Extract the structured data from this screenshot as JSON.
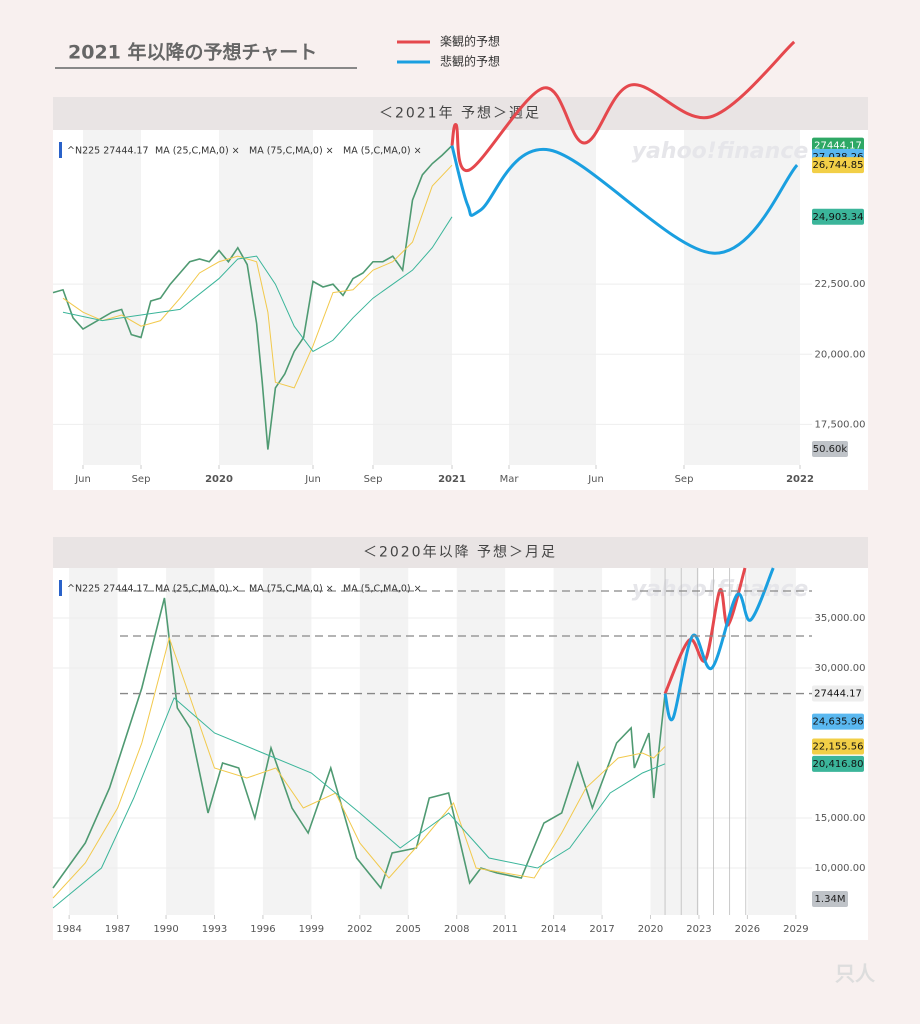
{
  "title": "2021 年以降の予想チャート",
  "watermark": "yahoo!finance",
  "logo": "只人",
  "chart_data": [
    {
      "type": "line",
      "header": "＜2021年 予想＞週足",
      "ticker_items": [
        "^N225 27444.17",
        "MA (25,C,MA,0) ×",
        "MA (75,C,MA,0) ×",
        "MA (5,C,MA,0) ×"
      ],
      "xlim": [
        3.5,
        36.4
      ],
      "xticks": [
        {
          "value": 5,
          "label": "Jun"
        },
        {
          "value": 8,
          "label": "Sep"
        },
        {
          "value": 12,
          "label": "2020"
        },
        {
          "value": 17,
          "label": "Jun"
        },
        {
          "value": 20,
          "label": "Sep"
        },
        {
          "value": 24,
          "label": "2021"
        },
        {
          "value": 26,
          "label": "Mar"
        },
        {
          "value": 29,
          "label": "Jun"
        },
        {
          "value": 32,
          "label": "Sep"
        },
        {
          "value": 36,
          "label": "2022"
        }
      ],
      "ylim": [
        16050,
        28000
      ],
      "yticks": [
        {
          "value": 17500,
          "label": "17,500.00"
        },
        {
          "value": 20000,
          "label": "20,000.00"
        },
        {
          "value": 22500,
          "label": "22,500.00"
        }
      ],
      "series": [
        {
          "color": "#4f9a72",
          "x": [
            3.5,
            4,
            4.5,
            5,
            5.5,
            6,
            6.5,
            7,
            7.5,
            8,
            8.5,
            9,
            9.5,
            10,
            10.5,
            11,
            11.5,
            12,
            12.5,
            13,
            13.5,
            14,
            14.3,
            14.6,
            15,
            15.5,
            16,
            16.5,
            17,
            17.5,
            18,
            18.5,
            19,
            19.5,
            20,
            20.5,
            21,
            21.5,
            22,
            22.5,
            23,
            23.5,
            24
          ],
          "values": [
            22200,
            22300,
            21300,
            20900,
            21100,
            21300,
            21500,
            21600,
            20700,
            20600,
            21900,
            22000,
            22500,
            22900,
            23300,
            23400,
            23300,
            23700,
            23300,
            23800,
            23200,
            21100,
            19000,
            16600,
            18800,
            19300,
            20100,
            20600,
            22600,
            22400,
            22500,
            22100,
            22700,
            22900,
            23300,
            23300,
            23500,
            23000,
            25500,
            26400,
            26800,
            27100,
            27444.17
          ]
        },
        {
          "color": "#f2c94c",
          "x": [
            4,
            5,
            6,
            7,
            8,
            9,
            10,
            11,
            12,
            13,
            14,
            14.6,
            15,
            16,
            17,
            18,
            19,
            20,
            21,
            22,
            23,
            24
          ],
          "values": [
            22000,
            21500,
            21200,
            21400,
            21000,
            21200,
            22000,
            22900,
            23300,
            23500,
            23300,
            21500,
            19000,
            18800,
            20300,
            22200,
            22300,
            23000,
            23300,
            24000,
            26000,
            26744.85
          ]
        },
        {
          "color": "#3bb59a",
          "x": [
            4,
            6,
            8,
            10,
            12,
            13,
            14,
            15,
            16,
            17,
            18,
            19,
            20,
            21,
            22,
            23,
            24
          ],
          "values": [
            21500,
            21200,
            21400,
            21600,
            22700,
            23400,
            23500,
            22500,
            21000,
            20100,
            20500,
            21300,
            22000,
            22500,
            23000,
            23800,
            24903.34
          ]
        },
        {
          "name": "楽観的予想",
          "color": "#e5484d",
          "smooth": true,
          "x": [
            24,
            24.15,
            24.6,
            27.2,
            28.6,
            30.2,
            32.9,
            35.8
          ],
          "values": [
            27444.17,
            28179,
            26571,
            29500,
            27536,
            29607,
            28464,
            31143
          ]
        },
        {
          "name": "悲観的予想",
          "color": "#1a9fe0",
          "smooth": true,
          "x": [
            24,
            24.55,
            25,
            27.4,
            33,
            35.9
          ],
          "values": [
            27444.17,
            25321,
            25143,
            27286,
            23607,
            26750
          ]
        }
      ],
      "badges": [
        {
          "label": "27444.17",
          "value": 27444.17,
          "color": "#2ea865",
          "text_color": "#ffffff"
        },
        {
          "label": "27,038.26",
          "value": 27038.26,
          "color": "#5ab8f0",
          "text_color": "#111111"
        },
        {
          "label": "26,744.85",
          "value": 26744.85,
          "color": "#f2cf47",
          "text_color": "#111111"
        },
        {
          "label": "24,903.34",
          "value": 24903.34,
          "color": "#3bb59a",
          "text_color": "#111111"
        }
      ],
      "volume_label": "50.60k"
    },
    {
      "type": "line",
      "header": "＜2020年以降 予想＞月足",
      "ticker_items": [
        "^N225 27444.17",
        "MA (25,C,MA,0) ×",
        "MA (75,C,MA,0) ×",
        "MA (5,C,MA,0) ×"
      ],
      "xlim": [
        1983,
        2030
      ],
      "xticks": [
        1984,
        1987,
        1990,
        1993,
        1996,
        1999,
        2002,
        2005,
        2008,
        2011,
        2014,
        2017,
        2020,
        2023,
        2026,
        2029
      ],
      "ylim": [
        5300,
        40000
      ],
      "yticks": [
        {
          "value": 35000,
          "label": "35,000.00"
        },
        {
          "value": 30000,
          "label": "30,000.00"
        },
        {
          "value": 15000,
          "label": "15,000.00"
        },
        {
          "value": 10000,
          "label": "10,000.00"
        }
      ],
      "series": [
        {
          "color": "#4f9a72",
          "x": [
            1983,
            1985,
            1986.5,
            1987.8,
            1988.5,
            1989.9,
            1990.7,
            1991.5,
            1992.6,
            1993.5,
            1994.5,
            1995.5,
            1996.5,
            1997.8,
            1998.8,
            2000.2,
            2001.8,
            2003.3,
            2004,
            2005.5,
            2006.3,
            2007.5,
            2008.8,
            2009.5,
            2010.5,
            2012,
            2013.4,
            2014.5,
            2015.5,
            2016.4,
            2017.9,
            2018.8,
            2019,
            2019.9,
            2020.2,
            2020.9
          ],
          "values": [
            8000,
            12500,
            18000,
            24500,
            28000,
            37000,
            26000,
            24000,
            15500,
            20500,
            20000,
            15000,
            22000,
            16000,
            13500,
            20000,
            11000,
            8000,
            11500,
            12000,
            17000,
            17500,
            8500,
            10000,
            9500,
            9000,
            14500,
            15500,
            20500,
            16000,
            22500,
            24000,
            20000,
            23500,
            17000,
            27444.17
          ]
        },
        {
          "color": "#f2c94c",
          "x": [
            1983,
            1985,
            1987,
            1988.5,
            1990.2,
            1991.5,
            1993,
            1995,
            1996.8,
            1998.5,
            2000.5,
            2002,
            2003.8,
            2006,
            2007.8,
            2009.2,
            2011,
            2012.8,
            2014.5,
            2016,
            2018,
            2019.5,
            2020.2,
            2020.9
          ],
          "values": [
            7000,
            10500,
            16000,
            22500,
            33000,
            27000,
            20000,
            19000,
            20000,
            16000,
            17500,
            12500,
            9000,
            13000,
            16500,
            10000,
            9500,
            9000,
            13500,
            18000,
            21000,
            21500,
            21000,
            22155.56
          ]
        },
        {
          "color": "#3bb59a",
          "x": [
            1983,
            1986,
            1988,
            1990.5,
            1993,
            1996,
            1999,
            2002,
            2004.5,
            2007.5,
            2010,
            2013,
            2015,
            2017.5,
            2019.5,
            2020.9
          ],
          "values": [
            6000,
            10000,
            17000,
            27000,
            23500,
            21500,
            19500,
            15500,
            12000,
            15500,
            11000,
            10000,
            12000,
            17500,
            19500,
            20416.8
          ]
        },
        {
          "color": "#e5484d",
          "smooth": true,
          "x": [
            2020.9,
            2022.4,
            2023.4,
            2024.3,
            2024.8,
            2025.85
          ],
          "values": [
            27444.17,
            32800,
            30800,
            37800,
            34300,
            40000
          ]
        },
        {
          "color": "#1a9fe0",
          "smooth": true,
          "x": [
            2020.9,
            2021.4,
            2022.6,
            2023.8,
            2025.35,
            2026.2,
            2027.6
          ],
          "values": [
            27444.17,
            25000,
            33200,
            30000,
            37300,
            34800,
            40000
          ]
        }
      ],
      "reference_lines": [
        37700,
        33200,
        27444.17
      ],
      "vlines": [
        2020.9,
        2021.9,
        2022.9,
        2023.9,
        2024.9,
        2025.9
      ],
      "badges": [
        {
          "label": "27444.17",
          "value": 27444.17,
          "color": "#eeeeee",
          "text_color": "#111111"
        },
        {
          "label": "24,635.96",
          "value": 24635.96,
          "color": "#5ab8f0",
          "text_color": "#111111"
        },
        {
          "label": "22,155.56",
          "value": 22155.56,
          "color": "#f2cf47",
          "text_color": "#111111"
        },
        {
          "label": "20,416.80",
          "value": 20416.8,
          "color": "#3bb59a",
          "text_color": "#111111"
        }
      ],
      "volume_label": "1.34M"
    }
  ]
}
